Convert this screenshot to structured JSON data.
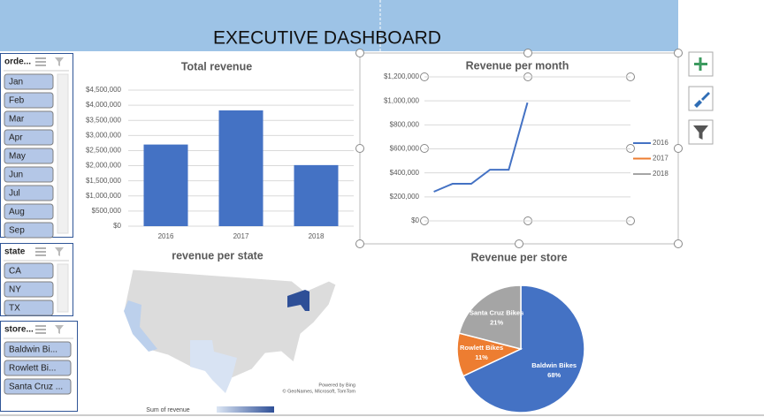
{
  "title": "EXECUTIVE DASHBOARD",
  "slicers": [
    {
      "header": "orde...",
      "items": [
        "Jan",
        "Feb",
        "Mar",
        "Apr",
        "May",
        "Jun",
        "Jul",
        "Aug",
        "Sep"
      ]
    },
    {
      "header": "state",
      "items": [
        "CA",
        "NY",
        "TX"
      ]
    },
    {
      "header": "store...",
      "items": [
        "Baldwin Bi...",
        "Rowlett Bi...",
        "Santa Cruz ..."
      ]
    }
  ],
  "chart_data": [
    {
      "type": "bar",
      "title": "Total revenue",
      "categories": [
        "2016",
        "2017",
        "2018"
      ],
      "values": [
        2700000,
        3830000,
        2020000
      ],
      "color": "#4472c4",
      "ylim": [
        0,
        4500000
      ],
      "yticks": [
        {
          "value": 0,
          "label": "$0"
        },
        {
          "value": 500000,
          "label": "$500,000"
        },
        {
          "value": 1000000,
          "label": "$1,000,000"
        },
        {
          "value": 1500000,
          "label": "$1,500,000"
        },
        {
          "value": 2000000,
          "label": "$2,000,000"
        },
        {
          "value": 2500000,
          "label": "$2,500,000"
        },
        {
          "value": 3000000,
          "label": "$3,000,000"
        },
        {
          "value": 3500000,
          "label": "$3,500,000"
        },
        {
          "value": 4000000,
          "label": "$4,000,000"
        },
        {
          "value": 4500000,
          "label": "$4,500,000"
        }
      ],
      "grid": true
    },
    {
      "type": "line",
      "title": "Revenue per month",
      "categories": [
        null,
        null,
        null,
        null,
        null,
        null,
        null,
        null,
        null,
        null,
        null
      ],
      "series": [
        {
          "name": "2016",
          "color": "#4472c4",
          "values": [
            243000,
            309000,
            309000,
            426000,
            426000,
            985000,
            null,
            null,
            null,
            null,
            null
          ]
        },
        {
          "name": "2017",
          "color": "#ed7d31",
          "values": [
            null,
            null,
            null,
            null,
            null,
            null,
            null,
            null,
            null,
            null,
            null
          ]
        },
        {
          "name": "2018",
          "color": "#a5a5a5",
          "values": [
            null,
            null,
            null,
            null,
            null,
            null,
            null,
            null,
            null,
            null,
            null
          ]
        }
      ],
      "ylim": [
        0,
        1200000
      ],
      "yticks": [
        {
          "value": 0,
          "label": "$0"
        },
        {
          "value": 200000,
          "label": "$200,000"
        },
        {
          "value": 400000,
          "label": "$400,000"
        },
        {
          "value": 600000,
          "label": "$600,000"
        },
        {
          "value": 800000,
          "label": "$800,000"
        },
        {
          "value": 1000000,
          "label": "$1,000,000"
        },
        {
          "value": 1200000,
          "label": "$1,200,000"
        }
      ],
      "grid": true,
      "legend": "right"
    },
    {
      "type": "map",
      "title": "revenue per state",
      "annotations": [
        "Powered by Bing",
        "© GeoNames, Microsoft, TomTom"
      ],
      "legend_title": "Sum of revenue"
    },
    {
      "type": "pie",
      "title": "Revenue per store",
      "categories": [
        "Baldwin Bikes",
        "Rowlett Bikes",
        "Santa Cruz Bikes"
      ],
      "values": [
        68,
        11,
        21
      ],
      "value_labels": [
        "68%",
        "11%",
        "21%"
      ],
      "colors": [
        "#4472c4",
        "#ed7d31",
        "#a5a5a5"
      ]
    }
  ]
}
